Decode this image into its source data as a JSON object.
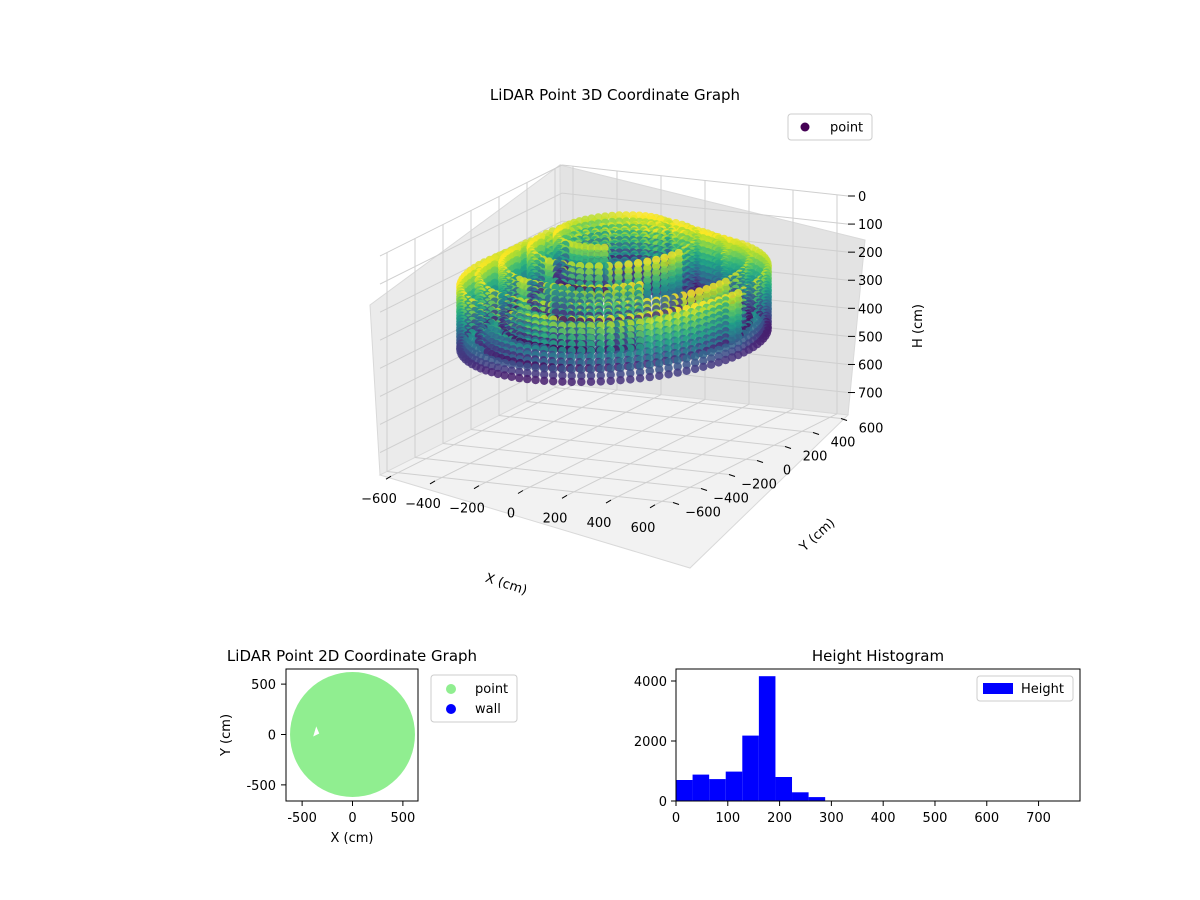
{
  "chart_data": [
    {
      "type": "scatter",
      "title": "LiDAR Point 3D Coordinate Graph",
      "xlabel": "X (cm)",
      "ylabel": "Y (cm)",
      "zlabel": "H (cm)",
      "xlim": [
        -650,
        650
      ],
      "ylim": [
        -650,
        650
      ],
      "zlim": [
        0,
        780
      ],
      "z_inverted": true,
      "x_ticks": [
        "−600",
        "−400",
        "−200",
        "0",
        "200",
        "400",
        "600"
      ],
      "y_ticks": [
        "−600",
        "−400",
        "−200",
        "0",
        "200",
        "400",
        "600"
      ],
      "z_ticks": [
        "0",
        "100",
        "200",
        "300",
        "400",
        "500",
        "600",
        "700"
      ],
      "legend": {
        "placement": "top-right",
        "entries": [
          {
            "label": "point",
            "color": "#440154"
          }
        ]
      },
      "colormap": "viridis",
      "grid": true,
      "rings": [
        {
          "radius": 590,
          "h_top": 180,
          "h_bottom": 420,
          "theta_start_deg": 0,
          "theta_end_deg": 360
        },
        {
          "radius": 520,
          "h_top": 150,
          "h_bottom": 380,
          "theta_start_deg": -60,
          "theta_end_deg": 300
        },
        {
          "radius": 430,
          "h_top": 110,
          "h_bottom": 330,
          "theta_start_deg": 20,
          "theta_end_deg": 320
        },
        {
          "radius": 320,
          "h_top": 60,
          "h_bottom": 270,
          "theta_start_deg": 0,
          "theta_end_deg": 360
        },
        {
          "radius": 220,
          "h_top": 20,
          "h_bottom": 180,
          "theta_start_deg": 40,
          "theta_end_deg": 300
        }
      ]
    },
    {
      "type": "scatter",
      "title": "LiDAR Point 2D Coordinate Graph",
      "xlabel": "X (cm)",
      "ylabel": "Y (cm)",
      "xlim": [
        -660,
        650
      ],
      "ylim": [
        -660,
        650
      ],
      "x_ticks": [
        -500,
        0,
        500
      ],
      "y_ticks": [
        -500,
        0,
        500
      ],
      "legend": {
        "placement": "outside-right",
        "entries": [
          {
            "label": "point",
            "color": "#90ee90"
          },
          {
            "label": "wall",
            "color": "#0000ff"
          }
        ]
      },
      "point_region": {
        "center": [
          0,
          0
        ],
        "radius": 620,
        "color": "#90ee90"
      }
    },
    {
      "type": "bar",
      "title": "Height Histogram",
      "xlim": [
        0,
        780
      ],
      "ylim": [
        0,
        4400
      ],
      "x_ticks": [
        0,
        100,
        200,
        300,
        400,
        500,
        600,
        700
      ],
      "y_ticks": [
        0,
        2000,
        4000
      ],
      "bin_edges": [
        0,
        32,
        64,
        96,
        128,
        160,
        192,
        224,
        256,
        288,
        320
      ],
      "values": [
        700,
        880,
        730,
        980,
        2180,
        4160,
        800,
        290,
        130,
        10
      ],
      "series": [
        {
          "name": "Height",
          "color": "#0000ff"
        }
      ],
      "legend": {
        "placement": "top-right"
      }
    }
  ]
}
